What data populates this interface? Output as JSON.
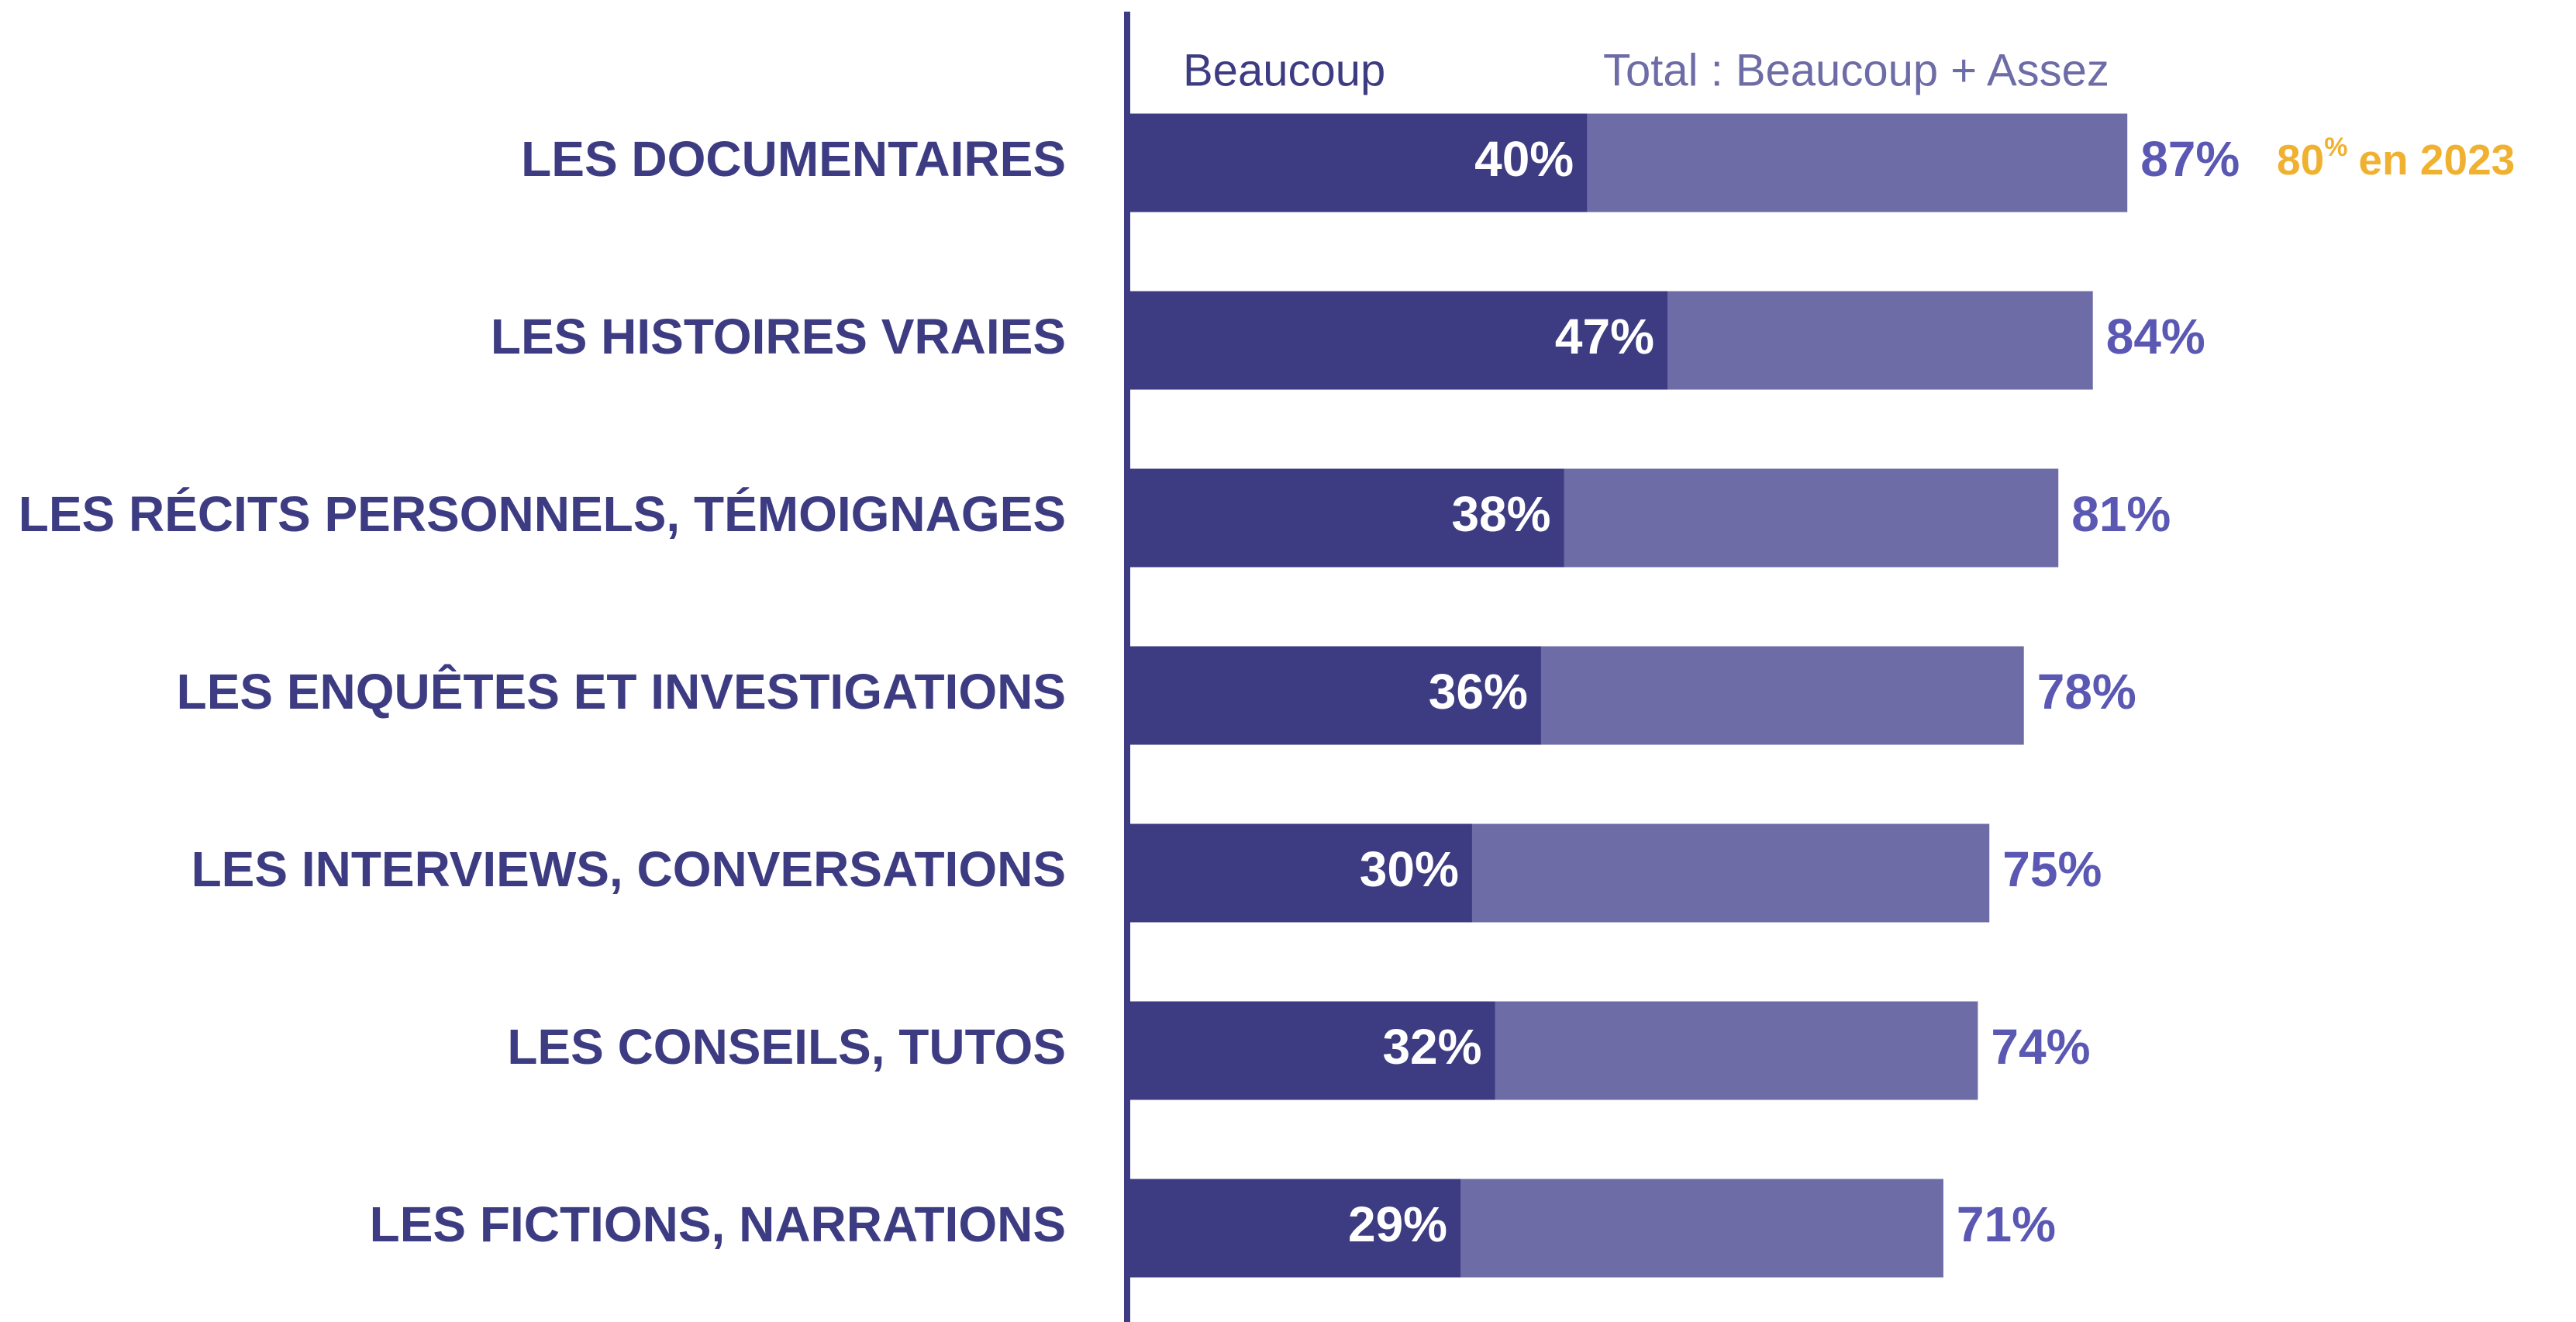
{
  "chart_data": {
    "type": "bar",
    "orientation": "horizontal",
    "overlay": true,
    "categories": [
      "LES DOCUMENTAIRES",
      "LES HISTOIRES VRAIES",
      "LES RÉCITS PERSONNELS, TÉMOIGNAGES",
      "LES ENQUÊTES ET INVESTIGATIONS",
      "LES INTERVIEWS, CONVERSATIONS",
      "LES CONSEILS, TUTOS",
      "LES FICTIONS, NARRATIONS"
    ],
    "series": [
      {
        "name": "Beaucoup",
        "color": "#3d3c82",
        "values": [
          40,
          47,
          38,
          36,
          30,
          32,
          29
        ],
        "value_labels": [
          "40%",
          "47%",
          "38%",
          "36%",
          "30%",
          "32%",
          "29%"
        ]
      },
      {
        "name": "Total : Beaucoup + Assez",
        "color": "#6e6ca6",
        "values": [
          87,
          84,
          81,
          78,
          75,
          74,
          71
        ],
        "value_labels": [
          "87%",
          "84%",
          "81%",
          "78%",
          "75%",
          "74%",
          "71%"
        ]
      }
    ],
    "xlim": [
      0,
      100
    ],
    "annotation": {
      "value": 80,
      "sup": "%",
      "text": "en 2023",
      "color": "#f0b030"
    }
  }
}
